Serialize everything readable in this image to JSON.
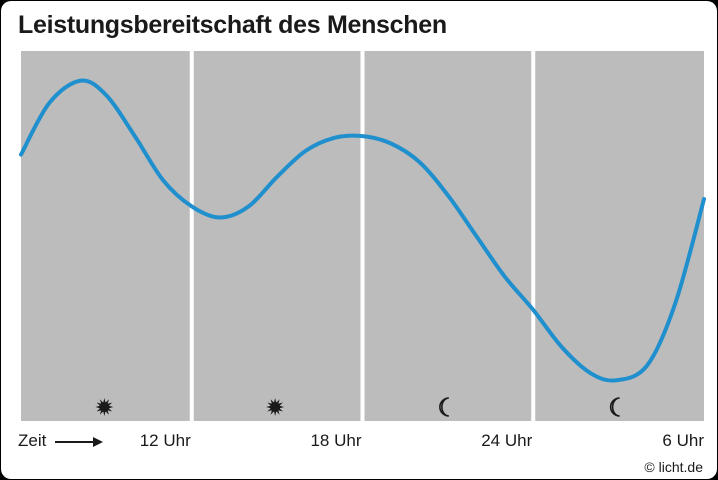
{
  "chart_data": {
    "type": "line",
    "title": "Leistungsbereitschaft des Menschen",
    "xlabel": "Zeit",
    "ylabel": "",
    "grid": false,
    "x_ticks": [
      "12 Uhr",
      "18 Uhr",
      "24 Uhr",
      "6 Uhr"
    ],
    "period_icons": [
      "sun-icon",
      "sun-icon",
      "moon-icon",
      "moon-icon"
    ],
    "xlim": [
      6,
      30
    ],
    "ylim": [
      0,
      100
    ],
    "series": [
      {
        "points": [
          [
            6,
            72
          ],
          [
            7,
            86
          ],
          [
            8.1,
            92
          ],
          [
            9,
            88
          ],
          [
            10,
            77
          ],
          [
            11,
            65
          ],
          [
            12,
            58
          ],
          [
            13,
            55
          ],
          [
            14,
            58
          ],
          [
            15,
            66
          ],
          [
            16,
            73
          ],
          [
            17,
            76.5
          ],
          [
            18,
            77
          ],
          [
            19,
            75
          ],
          [
            20,
            70
          ],
          [
            21,
            61
          ],
          [
            22,
            50
          ],
          [
            23,
            39
          ],
          [
            24,
            30
          ],
          [
            25,
            20
          ],
          [
            26,
            13
          ],
          [
            26.9,
            11
          ],
          [
            28,
            15
          ],
          [
            29,
            32
          ],
          [
            30,
            60
          ]
        ],
        "color": "#1f8fcd"
      }
    ],
    "colors": {
      "panel": "#bcbcbc",
      "divider": "#ffffff"
    }
  },
  "footer": {
    "credit": "© licht.de"
  }
}
